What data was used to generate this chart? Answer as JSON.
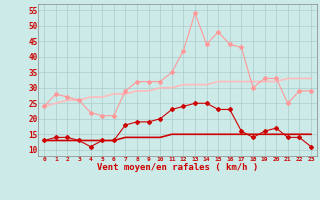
{
  "x": [
    0,
    1,
    2,
    3,
    4,
    5,
    6,
    7,
    8,
    9,
    10,
    11,
    12,
    13,
    14,
    15,
    16,
    17,
    18,
    19,
    20,
    21,
    22,
    23
  ],
  "rafales": [
    24,
    28,
    27,
    26,
    22,
    21,
    21,
    29,
    32,
    32,
    32,
    35,
    42,
    54,
    44,
    48,
    44,
    43,
    30,
    33,
    33,
    25,
    29,
    29
  ],
  "moyen": [
    13,
    14,
    14,
    13,
    11,
    13,
    13,
    18,
    19,
    19,
    20,
    23,
    24,
    25,
    25,
    23,
    23,
    16,
    14,
    16,
    17,
    14,
    14,
    11
  ],
  "trend_rafales": [
    24,
    25,
    26,
    26,
    27,
    27,
    28,
    28,
    29,
    29,
    30,
    30,
    31,
    31,
    31,
    32,
    32,
    32,
    32,
    32,
    32,
    33,
    33,
    33
  ],
  "trend_moyen": [
    13,
    13,
    13,
    13,
    13,
    13,
    13,
    14,
    14,
    14,
    14,
    15,
    15,
    15,
    15,
    15,
    15,
    15,
    15,
    15,
    15,
    15,
    15,
    15
  ],
  "bg_color": "#cceae8",
  "grid_color": "#aacccc",
  "line_rafales_color": "#ff9999",
  "line_moyen_color": "#cc0000",
  "trend_rafales_color": "#ffbbbb",
  "trend_moyen_color": "#cc0000",
  "xlabel": "Vent moyen/en rafales ( km/h )",
  "xlabel_color": "#cc0000",
  "tick_color": "#cc0000",
  "ylim": [
    8,
    57
  ],
  "yticks": [
    10,
    15,
    20,
    25,
    30,
    35,
    40,
    45,
    50,
    55
  ],
  "marker": "D",
  "marker_size": 2
}
